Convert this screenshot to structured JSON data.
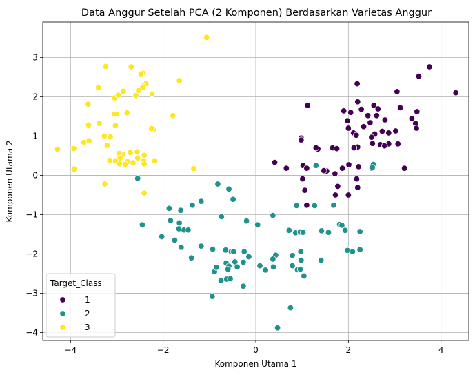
{
  "chart_data": {
    "type": "scatter",
    "title": "Data Anggur Setelah PCA (2 Komponen) Berdasarkan Varietas Anggur",
    "xlabel": "Komponen Utama 1",
    "ylabel": "Komponen Utama 2",
    "xlim": [
      -4.6,
      4.6
    ],
    "ylim": [
      -4.2,
      3.9
    ],
    "xticks": [
      -4,
      -2,
      0,
      2,
      4
    ],
    "yticks": [
      -4,
      -3,
      -2,
      -1,
      0,
      1,
      2,
      3
    ],
    "xtick_labels": [
      "−4",
      "−2",
      "0",
      "2",
      "4"
    ],
    "ytick_labels": [
      "−4",
      "−3",
      "−2",
      "−1",
      "0",
      "1",
      "2",
      "3"
    ],
    "grid": true,
    "legend": {
      "title": "Target_Class",
      "placement": "lower-left"
    },
    "series": [
      {
        "name": "1",
        "color": "#440154",
        "points": [
          [
            3.75,
            2.76
          ],
          [
            3.52,
            2.52
          ],
          [
            4.32,
            2.1
          ],
          [
            3.05,
            2.13
          ],
          [
            2.19,
            2.33
          ],
          [
            1.12,
            1.78
          ],
          [
            1.9,
            1.64
          ],
          [
            2.05,
            1.6
          ],
          [
            2.28,
            1.68
          ],
          [
            2.55,
            1.78
          ],
          [
            2.64,
            1.69
          ],
          [
            3.12,
            1.72
          ],
          [
            3.37,
            1.44
          ],
          [
            3.48,
            1.62
          ],
          [
            2.2,
            1.87
          ],
          [
            2.42,
            1.52
          ],
          [
            2.61,
            1.52
          ],
          [
            2.79,
            1.41
          ],
          [
            1.98,
            1.39
          ],
          [
            2.0,
            1.2
          ],
          [
            2.33,
            1.24
          ],
          [
            2.47,
            1.34
          ],
          [
            3.45,
            1.32
          ],
          [
            3.02,
            1.13
          ],
          [
            3.47,
            1.2
          ],
          [
            2.73,
            1.12
          ],
          [
            2.87,
            1.08
          ],
          [
            2.57,
            1.05
          ],
          [
            2.11,
            1.08
          ],
          [
            2.17,
            1.02
          ],
          [
            2.2,
            0.72
          ],
          [
            2.5,
            0.97
          ],
          [
            2.52,
            0.81
          ],
          [
            2.69,
            0.78
          ],
          [
            2.87,
            0.8
          ],
          [
            3.07,
            0.8
          ],
          [
            2.78,
            0.75
          ],
          [
            1.66,
            0.7
          ],
          [
            1.75,
            0.68
          ],
          [
            2.12,
            0.7
          ],
          [
            1.34,
            0.67
          ],
          [
            0.98,
            0.95
          ],
          [
            0.98,
            0.9
          ],
          [
            1.3,
            0.7
          ],
          [
            0.41,
            0.33
          ],
          [
            1.02,
            0.25
          ],
          [
            1.1,
            0.18
          ],
          [
            0.66,
            0.18
          ],
          [
            1.53,
            0.11
          ],
          [
            1.47,
            0.12
          ],
          [
            1.87,
            0.18
          ],
          [
            2.01,
            0.27
          ],
          [
            2.22,
            0.22
          ],
          [
            1.71,
            0.04
          ],
          [
            2.18,
            -0.09
          ],
          [
            2.51,
            0.18
          ],
          [
            3.21,
            0.18
          ],
          [
            2.2,
            -0.31
          ],
          [
            1.77,
            -0.28
          ],
          [
            1.01,
            -0.09
          ],
          [
            1.06,
            -0.38
          ],
          [
            1.72,
            -0.5
          ],
          [
            2.0,
            -0.5
          ],
          [
            1.1,
            -0.76
          ]
        ]
      },
      {
        "name": "2",
        "color": "#21918c",
        "points": [
          [
            1.3,
            0.25
          ],
          [
            2.54,
            0.28
          ],
          [
            2.52,
            0.2
          ],
          [
            -2.55,
            -0.08
          ],
          [
            -2.45,
            -1.26
          ],
          [
            -0.82,
            -0.22
          ],
          [
            -0.58,
            -0.35
          ],
          [
            -0.49,
            -0.61
          ],
          [
            -1.18,
            -0.66
          ],
          [
            -1.37,
            -0.76
          ],
          [
            -1.87,
            -0.84
          ],
          [
            -1.62,
            -0.89
          ],
          [
            -1.84,
            -1.15
          ],
          [
            -1.65,
            -1.21
          ],
          [
            -0.74,
            -1.05
          ],
          [
            -1.66,
            -1.36
          ],
          [
            -1.55,
            -1.39
          ],
          [
            -1.46,
            -1.39
          ],
          [
            -2.03,
            -1.56
          ],
          [
            -1.75,
            -1.65
          ],
          [
            -0.93,
            -1.88
          ],
          [
            -1.18,
            -1.8
          ],
          [
            -1.61,
            -1.83
          ],
          [
            -1.39,
            -2.1
          ],
          [
            -0.2,
            -1.16
          ],
          [
            0.04,
            -1.26
          ],
          [
            0.37,
            -1.02
          ],
          [
            0.88,
            -0.77
          ],
          [
            1.27,
            -0.77
          ],
          [
            1.68,
            -0.76
          ],
          [
            1.81,
            -1.25
          ],
          [
            1.93,
            -1.4
          ],
          [
            0.72,
            -1.4
          ],
          [
            0.86,
            -1.46
          ],
          [
            0.96,
            -1.44
          ],
          [
            1.02,
            -1.45
          ],
          [
            1.42,
            -1.41
          ],
          [
            1.57,
            -1.45
          ],
          [
            1.86,
            -1.27
          ],
          [
            2.25,
            -1.43
          ],
          [
            0.79,
            -2.04
          ],
          [
            0.43,
            -2.03
          ],
          [
            0.38,
            -2.33
          ],
          [
            0.09,
            -2.3
          ],
          [
            0.21,
            -2.41
          ],
          [
            0.97,
            -1.94
          ],
          [
            0.79,
            -2.3
          ],
          [
            0.9,
            -2.4
          ],
          [
            0.96,
            -2.39
          ],
          [
            1.04,
            -2.56
          ],
          [
            1.41,
            -2.16
          ],
          [
            1.98,
            -1.91
          ],
          [
            2.09,
            -1.94
          ],
          [
            2.25,
            -1.89
          ],
          [
            0.98,
            -2.16
          ],
          [
            -0.65,
            -1.9
          ],
          [
            -0.53,
            -1.94
          ],
          [
            -0.64,
            -2.23
          ],
          [
            -0.45,
            -2.2
          ],
          [
            -0.58,
            -2.31
          ],
          [
            -0.6,
            -2.39
          ],
          [
            -0.63,
            -2.64
          ],
          [
            -0.55,
            -2.63
          ],
          [
            -0.4,
            -2.33
          ],
          [
            -0.27,
            -2.21
          ],
          [
            -0.25,
            -1.94
          ],
          [
            -0.15,
            -2.07
          ],
          [
            -0.48,
            -1.94
          ],
          [
            -0.75,
            -2.68
          ],
          [
            -0.89,
            -2.45
          ],
          [
            -0.85,
            -2.34
          ],
          [
            -0.94,
            -3.08
          ],
          [
            -0.27,
            -2.82
          ],
          [
            0.47,
            -3.88
          ],
          [
            0.75,
            -3.37
          ],
          [
            0.37,
            -2.13
          ]
        ]
      },
      {
        "name": "3",
        "color": "#fde725",
        "points": [
          [
            -1.06,
            3.51
          ],
          [
            -3.24,
            2.77
          ],
          [
            -2.69,
            2.76
          ],
          [
            -2.44,
            2.6
          ],
          [
            -2.48,
            2.58
          ],
          [
            -3.4,
            2.23
          ],
          [
            -2.37,
            2.33
          ],
          [
            -2.44,
            2.27
          ],
          [
            -2.44,
            2.24
          ],
          [
            -1.65,
            2.41
          ],
          [
            -2.86,
            2.14
          ],
          [
            -2.53,
            2.16
          ],
          [
            -2.24,
            2.07
          ],
          [
            -3.05,
            1.97
          ],
          [
            -2.97,
            2.04
          ],
          [
            -2.59,
            2.03
          ],
          [
            -2.78,
            1.59
          ],
          [
            -3.62,
            1.81
          ],
          [
            -3.06,
            1.56
          ],
          [
            -3.0,
            1.56
          ],
          [
            -1.79,
            1.52
          ],
          [
            -3.61,
            1.28
          ],
          [
            -3.38,
            1.32
          ],
          [
            -3.03,
            1.27
          ],
          [
            -2.21,
            1.17
          ],
          [
            -2.25,
            1.19
          ],
          [
            -3.27,
            1.0
          ],
          [
            -3.14,
            0.98
          ],
          [
            -3.21,
            0.76
          ],
          [
            -3.71,
            0.84
          ],
          [
            -3.6,
            0.88
          ],
          [
            -2.87,
            0.53
          ],
          [
            -2.95,
            0.56
          ],
          [
            -2.71,
            0.58
          ],
          [
            -2.56,
            0.6
          ],
          [
            -2.55,
            0.44
          ],
          [
            -2.93,
            0.44
          ],
          [
            -2.41,
            0.51
          ],
          [
            -3.03,
            0.37
          ],
          [
            -3.15,
            0.38
          ],
          [
            -2.77,
            0.35
          ],
          [
            -2.65,
            0.32
          ],
          [
            -2.94,
            0.29
          ],
          [
            -2.82,
            0.28
          ],
          [
            -2.18,
            0.37
          ],
          [
            -2.42,
            0.37
          ],
          [
            -2.41,
            0.29
          ],
          [
            -4.28,
            0.66
          ],
          [
            -3.93,
            0.68
          ],
          [
            -3.92,
            0.16
          ],
          [
            -3.26,
            -0.22
          ],
          [
            -1.34,
            0.17
          ],
          [
            -2.41,
            -0.45
          ]
        ]
      }
    ]
  }
}
